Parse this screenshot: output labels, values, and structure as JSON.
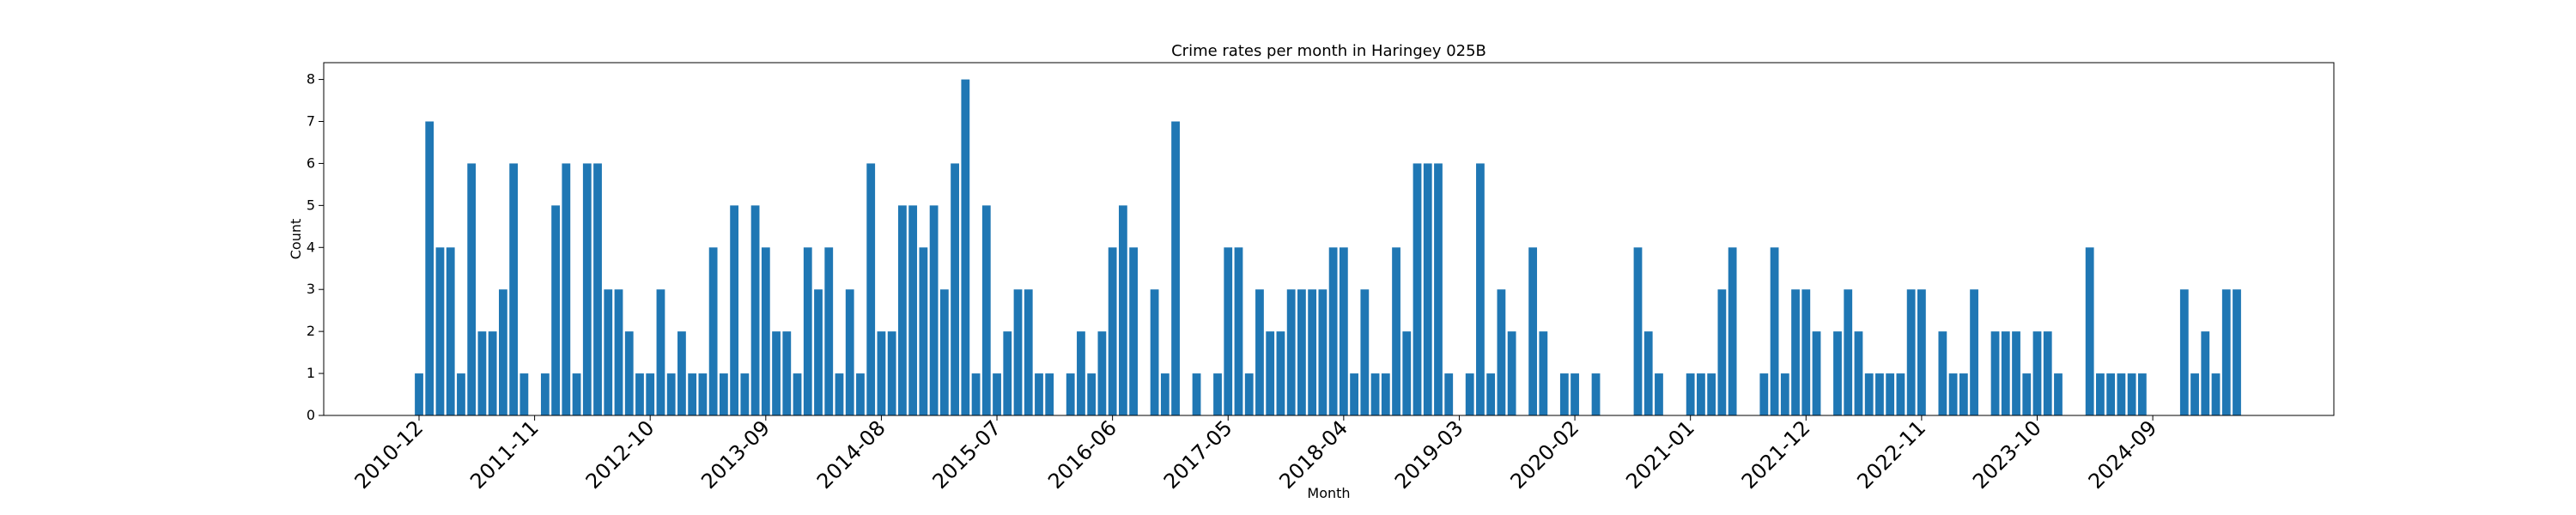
{
  "chart_data": {
    "type": "bar",
    "title": "Crime rates per month in Haringey 025B",
    "xlabel": "Month",
    "ylabel": "Count",
    "ylim": [
      0,
      8.4
    ],
    "yticks": [
      "0",
      "1",
      "2",
      "3",
      "4",
      "5",
      "6",
      "7",
      "8"
    ],
    "xticks": [
      "2010-12",
      "2011-11",
      "2012-10",
      "2013-09",
      "2014-08",
      "2015-07",
      "2016-06",
      "2017-05",
      "2018-04",
      "2019-03",
      "2020-02",
      "2021-01",
      "2021-12",
      "2022-11",
      "2023-10",
      "2024-09"
    ],
    "start_month": "2010-12",
    "grid": false,
    "color": "#1f77b4",
    "values": [
      1,
      7,
      4,
      4,
      1,
      6,
      2,
      2,
      3,
      6,
      1,
      0,
      1,
      5,
      6,
      1,
      6,
      6,
      3,
      3,
      2,
      1,
      1,
      3,
      1,
      2,
      1,
      1,
      4,
      1,
      5,
      1,
      5,
      4,
      2,
      2,
      1,
      4,
      3,
      4,
      1,
      3,
      1,
      6,
      2,
      2,
      5,
      5,
      4,
      5,
      3,
      6,
      8,
      1,
      5,
      1,
      2,
      3,
      3,
      1,
      1,
      0,
      1,
      2,
      1,
      2,
      4,
      5,
      4,
      0,
      3,
      1,
      7,
      0,
      1,
      0,
      1,
      4,
      4,
      1,
      3,
      2,
      2,
      3,
      3,
      3,
      3,
      4,
      4,
      1,
      3,
      1,
      1,
      4,
      2,
      6,
      6,
      6,
      1,
      0,
      1,
      6,
      1,
      3,
      2,
      0,
      4,
      2,
      0,
      1,
      1,
      0,
      1,
      0,
      0,
      0,
      4,
      2,
      1,
      0,
      0,
      1,
      1,
      1,
      3,
      4,
      0,
      0,
      1,
      4,
      1,
      3,
      3,
      2,
      0,
      2,
      3,
      2,
      1,
      1,
      1,
      1,
      3,
      3,
      0,
      2,
      1,
      1,
      3,
      0,
      2,
      2,
      2,
      1,
      2,
      2,
      1,
      0,
      0,
      4,
      1,
      1,
      1,
      1,
      1,
      0,
      0,
      0,
      3,
      1,
      2,
      1,
      3,
      3
    ]
  }
}
